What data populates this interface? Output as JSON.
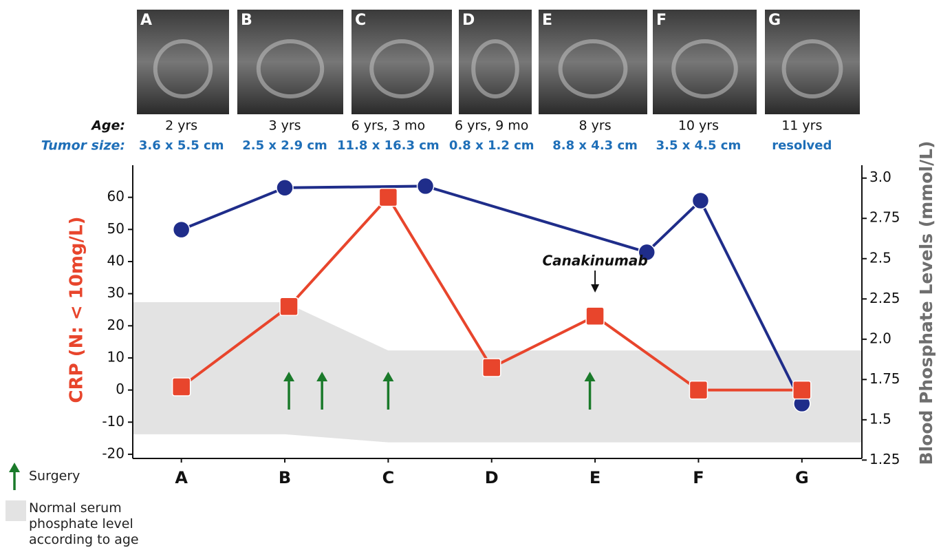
{
  "chart_data": {
    "type": "line",
    "images": [
      {
        "label": "A",
        "age": "2 yrs",
        "tumor_size": "3.6 x 5.5 cm"
      },
      {
        "label": "B",
        "age": "3 yrs",
        "tumor_size": "2.5 x 2.9 cm"
      },
      {
        "label": "C",
        "age": "6 yrs, 3 mo",
        "tumor_size": "11.8 x 16.3 cm"
      },
      {
        "label": "D",
        "age": "6 yrs, 9 mo",
        "tumor_size": "0.8 x 1.2 cm"
      },
      {
        "label": "E",
        "age": "8 yrs",
        "tumor_size": "8.8 x 4.3 cm"
      },
      {
        "label": "F",
        "age": "10 yrs",
        "tumor_size": "3.5 x 4.5 cm"
      },
      {
        "label": "G",
        "age": "11 yrs",
        "tumor_size": "resolved"
      }
    ],
    "age_label": "Age:",
    "tumor_label": "Tumor size:",
    "ylabel": "CRP (N: < 10mg/L)",
    "y2label": "Blood Phosphate Levels (mmol/L)",
    "xlim": [
      -0.47,
      6.58
    ],
    "xticks": [
      {
        "value": 0,
        "label": "A"
      },
      {
        "value": 1,
        "label": "B"
      },
      {
        "value": 2,
        "label": "C"
      },
      {
        "value": 3,
        "label": "D"
      },
      {
        "value": 4,
        "label": "E"
      },
      {
        "value": 5,
        "label": "F"
      },
      {
        "value": 6,
        "label": "G"
      }
    ],
    "ylim": [
      -21.3,
      70
    ],
    "yticks": [
      -20,
      -10,
      0,
      10,
      20,
      30,
      40,
      50,
      60
    ],
    "y2lim": [
      1.26,
      3.08
    ],
    "y2ticks": [
      {
        "value": 1.25,
        "label": "1.25"
      },
      {
        "value": 1.5,
        "label": "1.5"
      },
      {
        "value": 1.75,
        "label": "1.75"
      },
      {
        "value": 2,
        "label": "2.0"
      },
      {
        "value": 2.25,
        "label": "2.25"
      },
      {
        "value": 2.5,
        "label": "2.5"
      },
      {
        "value": 2.75,
        "label": "2.75"
      },
      {
        "value": 3,
        "label": "3.0"
      }
    ],
    "series": [
      {
        "color": "#1f2d8a",
        "axis": "y2",
        "marker": "circle",
        "x": [
          0,
          1,
          2.36,
          4.5,
          5.02,
          6
        ],
        "values": [
          2.68,
          2.94,
          2.95,
          2.54,
          2.86,
          1.6
        ]
      },
      {
        "color": "#e8452c",
        "marker": "square",
        "x": [
          0,
          1.04,
          2,
          3,
          4,
          5,
          6
        ],
        "values": [
          1,
          26,
          60,
          7,
          23,
          0,
          0
        ]
      }
    ],
    "normal_range": {
      "name": "Normal serum phosphate level according to age",
      "color": "#e3e3e3",
      "axis": "y2",
      "x": [
        -0.47,
        1,
        2,
        6.58
      ],
      "lower": [
        1.41,
        1.41,
        1.36,
        1.36
      ],
      "upper": [
        2.23,
        2.23,
        1.93,
        1.93
      ]
    },
    "surgery": {
      "name": "Surgery",
      "color": "#1a7a2a",
      "x": [
        1.04,
        1.36,
        2,
        3.95
      ]
    },
    "annotation": {
      "text": "Canakinumab",
      "x": 4
    }
  }
}
